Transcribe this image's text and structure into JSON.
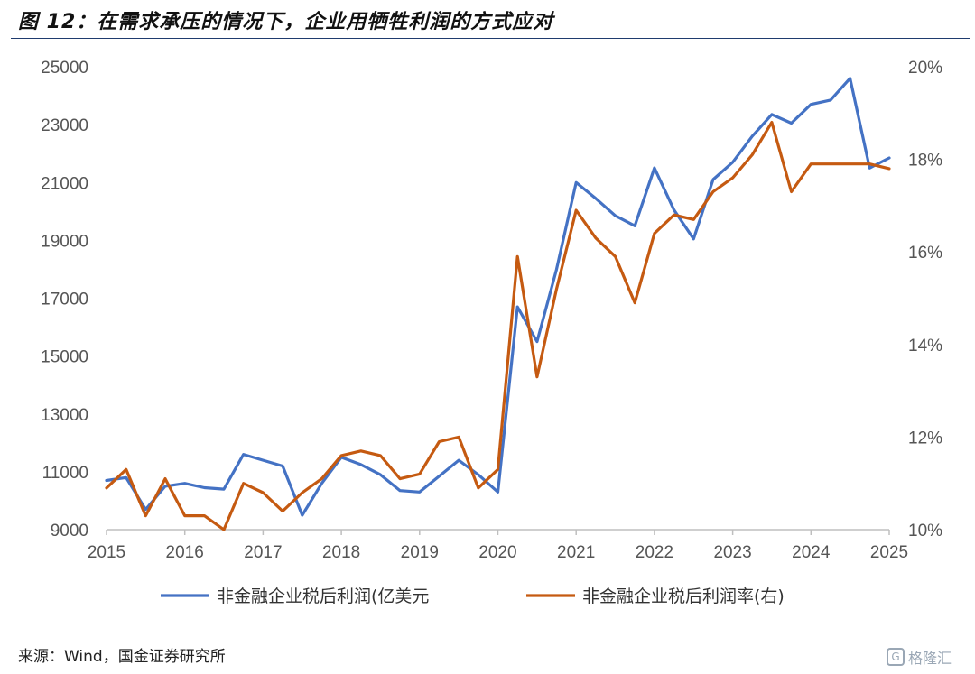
{
  "title": "图 12：在需求承压的情况下，企业用牺牲利润的方式应对",
  "source": "来源：Wind，国金证券研究所",
  "watermark": "格隆汇",
  "colors": {
    "profit": "#4472c4",
    "margin": "#c55a11",
    "rule": "#1f3b6e"
  },
  "chart_data": {
    "type": "line",
    "x_ticks": [
      "2015",
      "2016",
      "2017",
      "2018",
      "2019",
      "2020",
      "2021",
      "2022",
      "2023",
      "2024",
      "2025"
    ],
    "y_left_ticks": [
      "9000",
      "11000",
      "13000",
      "15000",
      "17000",
      "19000",
      "21000",
      "23000",
      "25000"
    ],
    "y_right_ticks": [
      "10%",
      "12%",
      "14%",
      "16%",
      "18%",
      "20%"
    ],
    "y_left_range": [
      9000,
      25000
    ],
    "y_right_range": [
      10,
      20
    ],
    "x_range": [
      2015,
      2025
    ],
    "series": [
      {
        "name": "非金融企业税后利润(亿美元",
        "axis": "left",
        "x": [
          2015.0,
          2015.25,
          2015.5,
          2015.75,
          2016.0,
          2016.25,
          2016.5,
          2016.75,
          2017.0,
          2017.25,
          2017.5,
          2017.75,
          2018.0,
          2018.25,
          2018.5,
          2018.75,
          2019.0,
          2019.25,
          2019.5,
          2019.75,
          2020.0,
          2020.25,
          2020.5,
          2020.75,
          2021.0,
          2021.25,
          2021.5,
          2021.75,
          2022.0,
          2022.25,
          2022.5,
          2022.75,
          2023.0,
          2023.25,
          2023.5,
          2023.75,
          2024.0,
          2024.25,
          2024.5,
          2024.75,
          2025.0
        ],
        "values": [
          10700,
          10800,
          9700,
          10500,
          10600,
          10450,
          10400,
          11600,
          11400,
          11200,
          9500,
          10600,
          11500,
          11250,
          10900,
          10350,
          10300,
          10850,
          11400,
          10900,
          10300,
          16700,
          15500,
          18000,
          21000,
          20450,
          19850,
          19500,
          21500,
          20050,
          19050,
          21100,
          21700,
          22600,
          23350,
          23050,
          23700,
          23850,
          24600,
          21500,
          21850
        ]
      },
      {
        "name": "非金融企业税后利润率(右)",
        "axis": "right",
        "x": [
          2015.0,
          2015.25,
          2015.5,
          2015.75,
          2016.0,
          2016.25,
          2016.5,
          2016.75,
          2017.0,
          2017.25,
          2017.5,
          2017.75,
          2018.0,
          2018.25,
          2018.5,
          2018.75,
          2019.0,
          2019.25,
          2019.5,
          2019.75,
          2020.0,
          2020.25,
          2020.5,
          2020.75,
          2021.0,
          2021.25,
          2021.5,
          2021.75,
          2022.0,
          2022.25,
          2022.5,
          2022.75,
          2023.0,
          2023.25,
          2023.5,
          2023.75,
          2024.0,
          2024.25,
          2024.5,
          2024.75,
          2025.0
        ],
        "values": [
          10.9,
          11.3,
          10.3,
          11.1,
          10.3,
          10.3,
          10.0,
          11.0,
          10.8,
          10.4,
          10.8,
          11.1,
          11.6,
          11.7,
          11.6,
          11.1,
          11.2,
          11.9,
          12.0,
          10.9,
          11.3,
          15.9,
          13.3,
          15.2,
          16.9,
          16.3,
          15.9,
          14.9,
          16.4,
          16.8,
          16.7,
          17.3,
          17.6,
          18.1,
          18.8,
          17.3,
          17.9,
          17.9,
          17.9,
          17.9,
          17.8
        ]
      }
    ],
    "legend_position": "bottom"
  }
}
